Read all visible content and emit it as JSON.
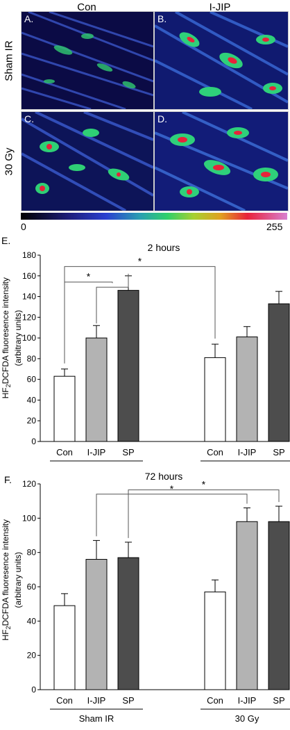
{
  "header": {
    "col1": "Con",
    "col2": "I-JIP"
  },
  "rows": {
    "row1": "Sham IR",
    "row2": "30 Gy"
  },
  "panels": {
    "a": "A.",
    "b": "B.",
    "c": "C.",
    "d": "D."
  },
  "colorbar": {
    "min": "0",
    "max": "255"
  },
  "chart_e": {
    "letter": "E.",
    "ylabel_line1_pre": "HF",
    "ylabel_line1_sub": "2",
    "ylabel_line1_post": "DCFDA fluoresence intensity",
    "ylabel_line2": "(arbitrary units)"
  },
  "chart_f": {
    "letter": "F.",
    "ylabel_line1_pre": "HF",
    "ylabel_line1_sub": "2",
    "ylabel_line1_post": "DCFDA fluoresence intensity",
    "ylabel_line2": "(arbitrary units)"
  },
  "chart_data": [
    {
      "type": "bar",
      "title": "2 hours",
      "ylim": [
        0,
        180
      ],
      "yticks": [
        0,
        20,
        40,
        60,
        80,
        100,
        120,
        140,
        160,
        180
      ],
      "groups": [
        {
          "name": "Sham IR",
          "categories": [
            "Con",
            "I-JIP",
            "SP"
          ],
          "values": [
            63,
            100,
            146
          ],
          "errors": [
            7,
            12,
            14
          ]
        },
        {
          "name": "30 Gy",
          "categories": [
            "Con",
            "I-JIP",
            "SP"
          ],
          "values": [
            81,
            101,
            133
          ],
          "errors": [
            13,
            10,
            12
          ]
        }
      ],
      "bar_colors": [
        "#ffffff",
        "#b3b3b3",
        "#4d4d4d"
      ],
      "significance": "*"
    },
    {
      "type": "bar",
      "title": "72 hours",
      "ylim": [
        0,
        120
      ],
      "yticks": [
        0,
        20,
        40,
        60,
        80,
        100,
        120
      ],
      "groups": [
        {
          "name": "Sham IR",
          "categories": [
            "Con",
            "I-JIP",
            "SP"
          ],
          "values": [
            49,
            76,
            77
          ],
          "errors": [
            7,
            11,
            9
          ]
        },
        {
          "name": "30 Gy",
          "categories": [
            "Con",
            "I-JIP",
            "SP"
          ],
          "values": [
            57,
            98,
            98
          ],
          "errors": [
            7,
            8,
            9
          ]
        }
      ],
      "bar_colors": [
        "#ffffff",
        "#b3b3b3",
        "#4d4d4d"
      ],
      "significance": "*"
    }
  ]
}
